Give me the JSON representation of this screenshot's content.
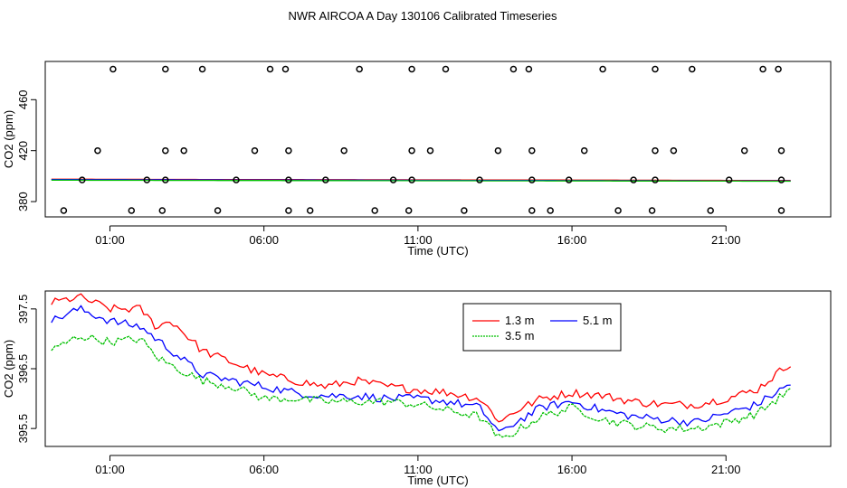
{
  "figure_title": "NWR AIRCOA A  Day 130106  Calibrated Timeseries",
  "chart_data": [
    {
      "type": "scatter+line",
      "title": "",
      "xlabel": "Time (UTC)",
      "ylabel": "CO2 (ppm)",
      "xlim": [
        -1.1,
        24.4
      ],
      "ylim": [
        368,
        490
      ],
      "x_ticks": [
        1,
        6,
        11,
        16,
        21
      ],
      "x_tick_labels": [
        "01:00",
        "06:00",
        "11:00",
        "16:00",
        "21:00"
      ],
      "y_ticks": [
        380,
        420,
        460
      ],
      "y_tick_labels": [
        "380",
        "420",
        "460"
      ],
      "marker_points": [
        {
          "x": -0.5,
          "y": 373
        },
        {
          "x": 0.1,
          "y": 397
        },
        {
          "x": 0.6,
          "y": 420
        },
        {
          "x": 1.1,
          "y": 484
        },
        {
          "x": 1.7,
          "y": 373
        },
        {
          "x": 2.2,
          "y": 397
        },
        {
          "x": 2.7,
          "y": 373
        },
        {
          "x": 2.8,
          "y": 420
        },
        {
          "x": 2.8,
          "y": 484
        },
        {
          "x": 2.8,
          "y": 397
        },
        {
          "x": 3.4,
          "y": 420
        },
        {
          "x": 4.0,
          "y": 484
        },
        {
          "x": 4.5,
          "y": 373
        },
        {
          "x": 5.1,
          "y": 397
        },
        {
          "x": 5.7,
          "y": 420
        },
        {
          "x": 6.2,
          "y": 484
        },
        {
          "x": 6.7,
          "y": 484
        },
        {
          "x": 6.8,
          "y": 420
        },
        {
          "x": 6.8,
          "y": 397
        },
        {
          "x": 6.8,
          "y": 373
        },
        {
          "x": 7.5,
          "y": 373
        },
        {
          "x": 8.0,
          "y": 397
        },
        {
          "x": 8.6,
          "y": 420
        },
        {
          "x": 9.1,
          "y": 484
        },
        {
          "x": 9.6,
          "y": 373
        },
        {
          "x": 10.2,
          "y": 397
        },
        {
          "x": 10.7,
          "y": 373
        },
        {
          "x": 10.8,
          "y": 484
        },
        {
          "x": 10.8,
          "y": 420
        },
        {
          "x": 10.8,
          "y": 397
        },
        {
          "x": 11.4,
          "y": 420
        },
        {
          "x": 11.9,
          "y": 484
        },
        {
          "x": 12.5,
          "y": 373
        },
        {
          "x": 13.0,
          "y": 397
        },
        {
          "x": 13.6,
          "y": 420
        },
        {
          "x": 14.1,
          "y": 484
        },
        {
          "x": 14.6,
          "y": 484
        },
        {
          "x": 14.7,
          "y": 420
        },
        {
          "x": 14.7,
          "y": 397
        },
        {
          "x": 14.7,
          "y": 373
        },
        {
          "x": 15.3,
          "y": 373
        },
        {
          "x": 15.9,
          "y": 397
        },
        {
          "x": 16.4,
          "y": 420
        },
        {
          "x": 17.0,
          "y": 484
        },
        {
          "x": 17.5,
          "y": 373
        },
        {
          "x": 18.0,
          "y": 397
        },
        {
          "x": 18.6,
          "y": 373
        },
        {
          "x": 18.7,
          "y": 484
        },
        {
          "x": 18.7,
          "y": 420
        },
        {
          "x": 18.7,
          "y": 397
        },
        {
          "x": 19.3,
          "y": 420
        },
        {
          "x": 19.9,
          "y": 484
        },
        {
          "x": 20.5,
          "y": 373
        },
        {
          "x": 21.1,
          "y": 397
        },
        {
          "x": 21.6,
          "y": 420
        },
        {
          "x": 22.2,
          "y": 484
        },
        {
          "x": 22.7,
          "y": 484
        },
        {
          "x": 22.8,
          "y": 420
        },
        {
          "x": 22.8,
          "y": 397
        },
        {
          "x": 22.8,
          "y": 373
        }
      ],
      "series": [
        {
          "name": "1.3 m",
          "color": "#ff0000",
          "knots_x": [
            -0.9,
            23.1
          ],
          "knots_y": [
            397.6,
            396.6
          ]
        },
        {
          "name": "5.1 m",
          "color": "#0000ff",
          "knots_x": [
            -0.9,
            23.1
          ],
          "knots_y": [
            397.3,
            396.2
          ]
        },
        {
          "name": "3.5 m",
          "color": "#00c000",
          "knots_x": [
            -0.9,
            23.1
          ],
          "knots_y": [
            396.8,
            396.0
          ]
        }
      ]
    },
    {
      "type": "line",
      "title": "",
      "xlabel": "Time (UTC)",
      "ylabel": "CO2 (ppm)",
      "xlim": [
        -1.1,
        24.4
      ],
      "ylim": [
        395.2,
        397.8
      ],
      "x_ticks": [
        1,
        6,
        11,
        16,
        21
      ],
      "x_tick_labels": [
        "01:00",
        "06:00",
        "11:00",
        "16:00",
        "21:00"
      ],
      "y_ticks": [
        395.5,
        396.5,
        397.5
      ],
      "y_tick_labels": [
        "395.5",
        "396.5",
        "397.5"
      ],
      "legend": {
        "position": "top-center",
        "entries": [
          "1.3 m",
          "5.1 m",
          "3.5 m"
        ]
      },
      "series": [
        {
          "name": "1.3 m",
          "color": "#ff0000",
          "knots_x": [
            -0.9,
            0.0,
            1.0,
            2.0,
            2.5,
            3.0,
            4.0,
            5.0,
            6.0,
            7.0,
            8.0,
            9.0,
            10.0,
            11.0,
            12.0,
            13.0,
            13.7,
            14.0,
            15.0,
            16.0,
            17.0,
            18.0,
            19.0,
            20.0,
            21.0,
            22.0,
            23.1
          ],
          "knots_y": [
            397.6,
            397.7,
            397.5,
            397.5,
            397.2,
            397.3,
            396.8,
            396.6,
            396.4,
            396.3,
            396.2,
            396.3,
            396.2,
            396.15,
            396.1,
            396.0,
            395.6,
            395.75,
            396.0,
            396.1,
            396.05,
            395.95,
            395.9,
            395.9,
            396.0,
            396.15,
            396.6
          ]
        },
        {
          "name": "5.1 m",
          "color": "#0000ff",
          "knots_x": [
            -0.9,
            0.0,
            1.0,
            2.0,
            2.5,
            3.0,
            4.0,
            5.0,
            6.0,
            7.0,
            8.0,
            9.0,
            10.0,
            11.0,
            12.0,
            13.0,
            13.7,
            14.0,
            15.0,
            16.0,
            17.0,
            18.0,
            19.0,
            20.0,
            21.0,
            22.0,
            23.1
          ],
          "knots_y": [
            397.3,
            397.5,
            397.3,
            397.2,
            397.0,
            396.8,
            396.4,
            396.3,
            396.2,
            396.1,
            396.05,
            396.05,
            396.0,
            396.0,
            395.95,
            395.85,
            395.4,
            395.55,
            395.85,
            395.95,
            395.8,
            395.7,
            395.65,
            395.6,
            395.75,
            395.9,
            396.25
          ]
        },
        {
          "name": "3.5 m",
          "color": "#00c000",
          "knots_x": [
            -0.9,
            0.0,
            1.0,
            2.0,
            2.5,
            3.0,
            4.0,
            5.0,
            6.0,
            7.0,
            8.0,
            9.0,
            10.0,
            11.0,
            12.0,
            13.0,
            13.7,
            14.0,
            15.0,
            16.0,
            17.0,
            18.0,
            19.0,
            20.0,
            21.0,
            22.0,
            23.1
          ],
          "knots_y": [
            396.8,
            397.05,
            396.95,
            397.0,
            396.7,
            396.55,
            396.3,
            396.2,
            396.0,
            396.0,
            395.95,
            395.95,
            395.95,
            395.9,
            395.8,
            395.7,
            395.3,
            395.4,
            395.7,
            395.85,
            395.65,
            395.55,
            395.5,
            395.5,
            395.6,
            395.75,
            396.15
          ]
        }
      ]
    }
  ]
}
